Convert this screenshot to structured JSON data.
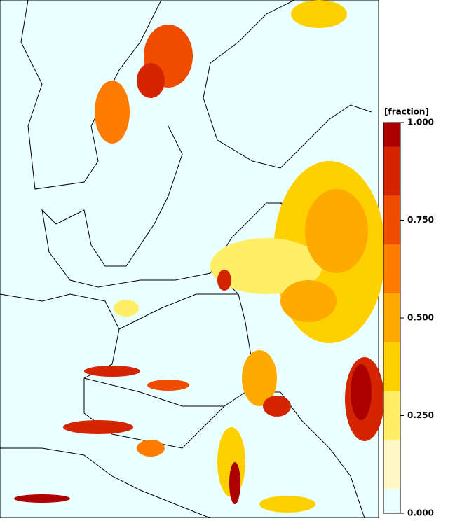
{
  "colorbar": {
    "label": "[fraction]",
    "lim": [
      0,
      1
    ],
    "ticks": [
      {
        "value": 0,
        "label": "0.000"
      },
      {
        "value": 0.25,
        "label": "0.250"
      },
      {
        "value": 0.5,
        "label": "0.500"
      },
      {
        "value": 0.75,
        "label": "0.750"
      },
      {
        "value": 1,
        "label": "1.000"
      }
    ],
    "levels": [
      0,
      0.0625,
      0.1875,
      0.3125,
      0.4375,
      0.5625,
      0.6875,
      0.8125,
      0.9375,
      1
    ],
    "colors": [
      "#eaffff",
      "#fff8c4",
      "#ffee66",
      "#ffd000",
      "#ffaa00",
      "#ff7c00",
      "#f04c00",
      "#d42400",
      "#ac0000"
    ]
  }
}
